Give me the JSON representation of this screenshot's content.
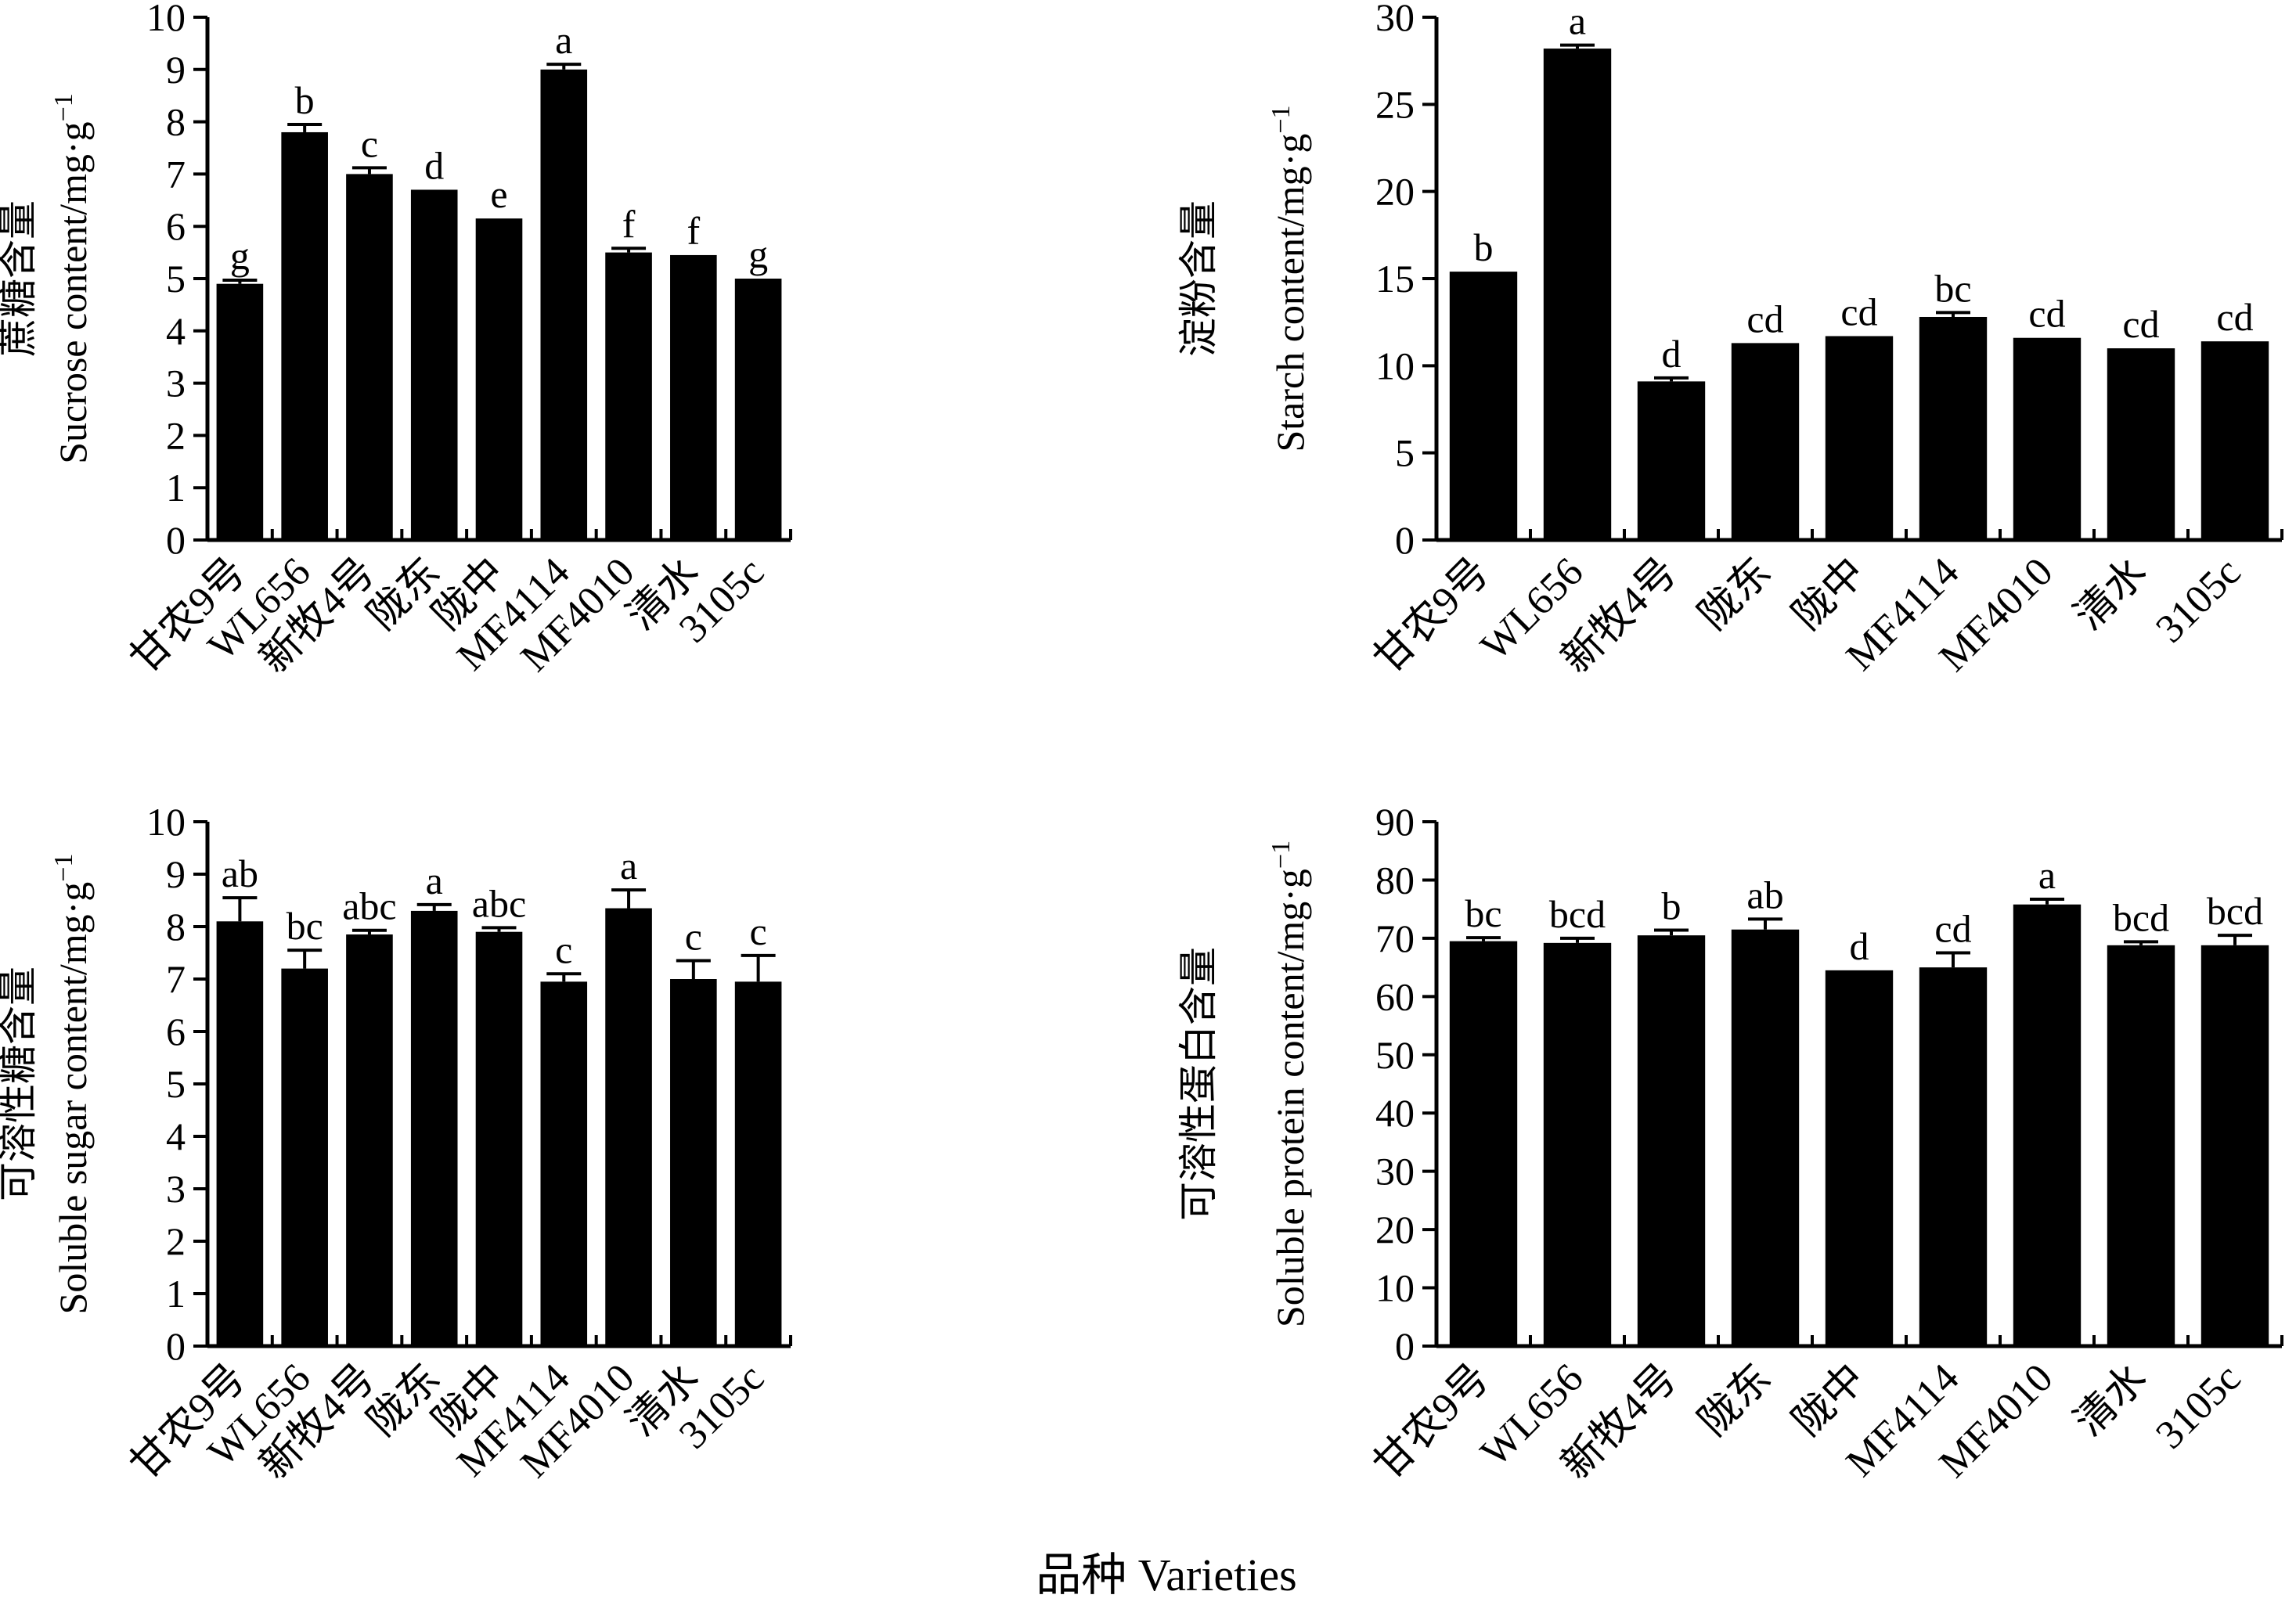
{
  "shared_xlabel": "品种 Varieties",
  "chart_data": [
    {
      "type": "bar",
      "panel": "top-left",
      "title": "",
      "ylabel_cn": "蔗糖含量",
      "ylabel_en": "Sucrose content/mg·g",
      "ylabel_sup": "−1",
      "xlabel": "",
      "ylim": [
        0,
        10
      ],
      "yticks": [
        0,
        1,
        2,
        3,
        4,
        5,
        6,
        7,
        8,
        9,
        10
      ],
      "categories": [
        "甘农9号",
        "WL656",
        "新牧4号",
        "陇东",
        "陇中",
        "MF4114",
        "MF4010",
        "清水",
        "3105c"
      ],
      "values": [
        4.9,
        7.8,
        7.0,
        6.7,
        6.15,
        9.0,
        5.5,
        5.45,
        5.0
      ],
      "errors": [
        0.07,
        0.15,
        0.12,
        0.0,
        0.0,
        0.1,
        0.08,
        0.0,
        0.0
      ],
      "significance": [
        "g",
        "b",
        "c",
        "d",
        "e",
        "a",
        "f",
        "f",
        "g"
      ]
    },
    {
      "type": "bar",
      "panel": "top-right",
      "title": "",
      "ylabel_cn": "淀粉含量",
      "ylabel_en": "Starch content/mg·g",
      "ylabel_sup": "−1",
      "xlabel": "",
      "ylim": [
        0,
        30
      ],
      "yticks": [
        0,
        5,
        10,
        15,
        20,
        25,
        30
      ],
      "categories": [
        "甘农9号",
        "WL656",
        "新牧4号",
        "陇东",
        "陇中",
        "MF4114",
        "MF4010",
        "清水",
        "3105c"
      ],
      "values": [
        15.4,
        28.2,
        9.1,
        11.3,
        11.7,
        12.8,
        11.6,
        11.0,
        11.4
      ],
      "errors": [
        0.0,
        0.2,
        0.2,
        0.0,
        0.0,
        0.25,
        0.0,
        0.0,
        0.0
      ],
      "significance": [
        "b",
        "a",
        "d",
        "cd",
        "cd",
        "bc",
        "cd",
        "cd",
        "cd"
      ]
    },
    {
      "type": "bar",
      "panel": "bottom-left",
      "title": "",
      "ylabel_cn": "可溶性糖含量",
      "ylabel_en": "Soluble sugar content/mg·g",
      "ylabel_sup": "−1",
      "xlabel": "",
      "ylim": [
        0,
        10
      ],
      "yticks": [
        0,
        1,
        2,
        3,
        4,
        5,
        6,
        7,
        8,
        9,
        10
      ],
      "categories": [
        "甘农9号",
        "WL656",
        "新牧4号",
        "陇东",
        "陇中",
        "MF4114",
        "MF4010",
        "清水",
        "3105c"
      ],
      "values": [
        8.1,
        7.2,
        7.85,
        8.3,
        7.9,
        6.95,
        8.35,
        7.0,
        6.95
      ],
      "errors": [
        0.45,
        0.35,
        0.08,
        0.12,
        0.08,
        0.15,
        0.35,
        0.35,
        0.5
      ],
      "significance": [
        "ab",
        "bc",
        "abc",
        "a",
        "abc",
        "c",
        "a",
        "c",
        "c"
      ]
    },
    {
      "type": "bar",
      "panel": "bottom-right",
      "title": "",
      "ylabel_cn": "可溶性蛋白含量",
      "ylabel_en": "Soluble protein content/mg·g",
      "ylabel_sup": "−1",
      "xlabel": "",
      "ylim": [
        0,
        90
      ],
      "yticks": [
        0,
        10,
        20,
        30,
        40,
        50,
        60,
        70,
        80,
        90
      ],
      "categories": [
        "甘农9号",
        "WL656",
        "新牧4号",
        "陇东",
        "陇中",
        "MF4114",
        "MF4010",
        "清水",
        "3105c"
      ],
      "values": [
        69.5,
        69.2,
        70.5,
        71.5,
        64.5,
        65.0,
        75.8,
        68.8,
        68.8
      ],
      "errors": [
        0.6,
        0.8,
        0.9,
        1.8,
        0.0,
        2.5,
        0.9,
        0.6,
        1.7
      ],
      "significance": [
        "bc",
        "bcd",
        "b",
        "ab",
        "d",
        "cd",
        "a",
        "bcd",
        "bcd"
      ]
    }
  ]
}
